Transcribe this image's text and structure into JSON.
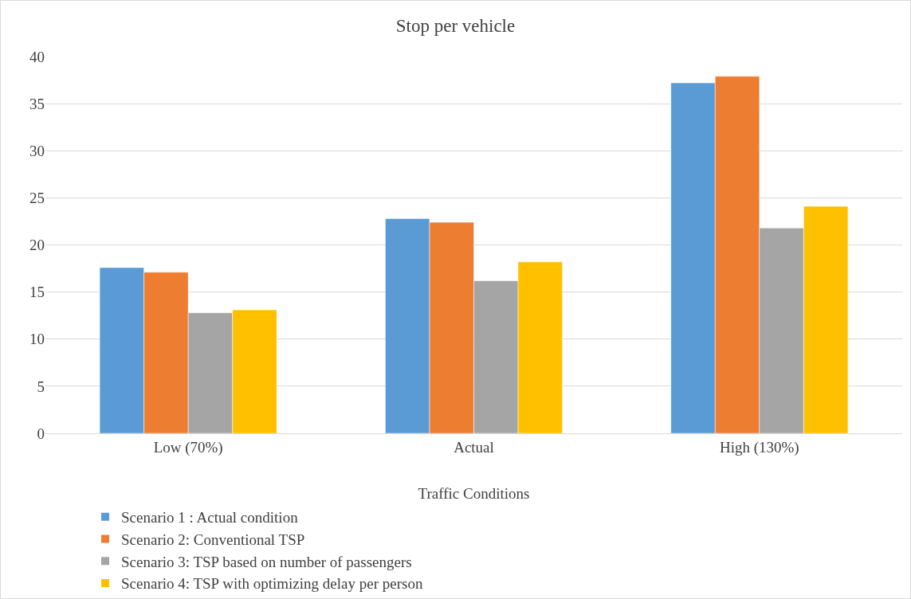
{
  "chart_data": {
    "type": "bar",
    "title": "Stop per vehicle",
    "xlabel": "Traffic Conditions",
    "categories": [
      "Low (70%)",
      "Actual",
      "High (130%)"
    ],
    "series": [
      {
        "name": "Scenario 1 : Actual condition",
        "color": "#5b9bd5",
        "values": [
          17.6,
          22.8,
          37.2
        ]
      },
      {
        "name": "Scenario 2: Conventional TSP",
        "color": "#ed7d31",
        "values": [
          17.1,
          22.4,
          37.9
        ]
      },
      {
        "name": "Scenario 3: TSP based on number of passengers",
        "color": "#a5a5a5",
        "values": [
          12.8,
          16.2,
          21.8
        ]
      },
      {
        "name": "Scenario 4: TSP with optimizing delay per person",
        "color": "#ffc000",
        "values": [
          13.1,
          18.2,
          24.1
        ]
      }
    ],
    "ylim": [
      0,
      40
    ],
    "yticks": [
      0,
      5,
      10,
      15,
      20,
      25,
      30,
      35,
      40
    ],
    "grid": "y",
    "legend": "bottom"
  }
}
